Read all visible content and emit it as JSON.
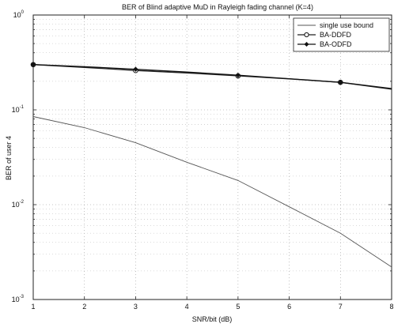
{
  "chart_data": {
    "type": "line",
    "title": "BER of Blind adaptive MuD in Rayleigh fading channel (K=4)",
    "xlabel": "SNR/bit (dB)",
    "ylabel": "BER of user 4",
    "x": [
      1,
      2,
      3,
      4,
      5,
      6,
      7,
      8
    ],
    "xlim": [
      1,
      8
    ],
    "ylim": [
      0.001,
      1
    ],
    "yscale": "log",
    "grid": true,
    "legend_position": "top-right",
    "x_tick_labels": [
      "1",
      "2",
      "3",
      "4",
      "5",
      "6",
      "7",
      "8"
    ],
    "y_tick_labels": [
      {
        "base": "10",
        "exp": "0",
        "value": 1
      },
      {
        "base": "10",
        "exp": "-1",
        "value": 0.1
      },
      {
        "base": "10",
        "exp": "-2",
        "value": 0.01
      },
      {
        "base": "10",
        "exp": "-3",
        "value": 0.001
      }
    ],
    "series": [
      {
        "name": "single use bound",
        "marker": "none",
        "values": [
          0.085,
          0.065,
          0.045,
          0.028,
          0.018,
          0.0095,
          0.005,
          0.0022
        ]
      },
      {
        "name": "BA-DDFD",
        "marker": "open-circle",
        "marker_x": [
          1,
          3,
          5,
          7
        ],
        "values": [
          0.3,
          0.28,
          0.26,
          0.245,
          0.228,
          0.212,
          0.195,
          0.168
        ]
      },
      {
        "name": "BA-ODFD",
        "marker": "filled-diamond",
        "marker_x": [
          1,
          3,
          5,
          7
        ],
        "values": [
          0.3,
          0.285,
          0.268,
          0.25,
          0.232,
          0.213,
          0.195,
          0.165
        ]
      }
    ]
  }
}
